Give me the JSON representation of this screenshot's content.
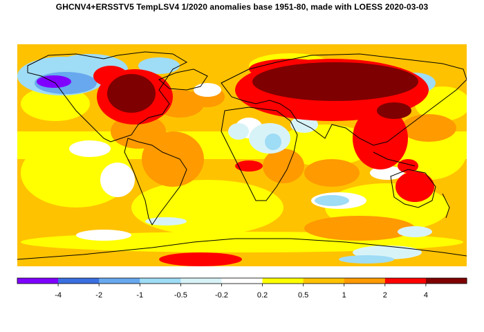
{
  "title": "GHCNV4+ERSSTV5 TempLSV4 1/2020 anomalies base 1951-80, made with LOESS 2020-03-03",
  "legend": {
    "colors": [
      "#7f00ff",
      "#3a6fe0",
      "#67a8ee",
      "#9fdcf5",
      "#d8f3f8",
      "#ffffff",
      "#ffff00",
      "#ffc200",
      "#ff9a00",
      "#ff0000",
      "#7f0000"
    ],
    "labels": [
      "-4",
      "-2",
      "-1",
      "-0.5",
      "-0.2",
      "0.2",
      "0.5",
      "1",
      "2",
      "4"
    ]
  },
  "map": {
    "projection": "equirectangular",
    "background_color": "#ffc200",
    "features": [
      {
        "name": "siberia-warm-anomaly",
        "color": "#7f0000"
      },
      {
        "name": "canada-warm-anomaly",
        "color": "#7f0000"
      },
      {
        "name": "alaska-cold-anomaly",
        "color": "#7f00ff"
      },
      {
        "name": "australia-warm-anomaly",
        "color": "#ff0000"
      },
      {
        "name": "antarctica-warm-anomaly",
        "color": "#ff0000"
      }
    ]
  }
}
